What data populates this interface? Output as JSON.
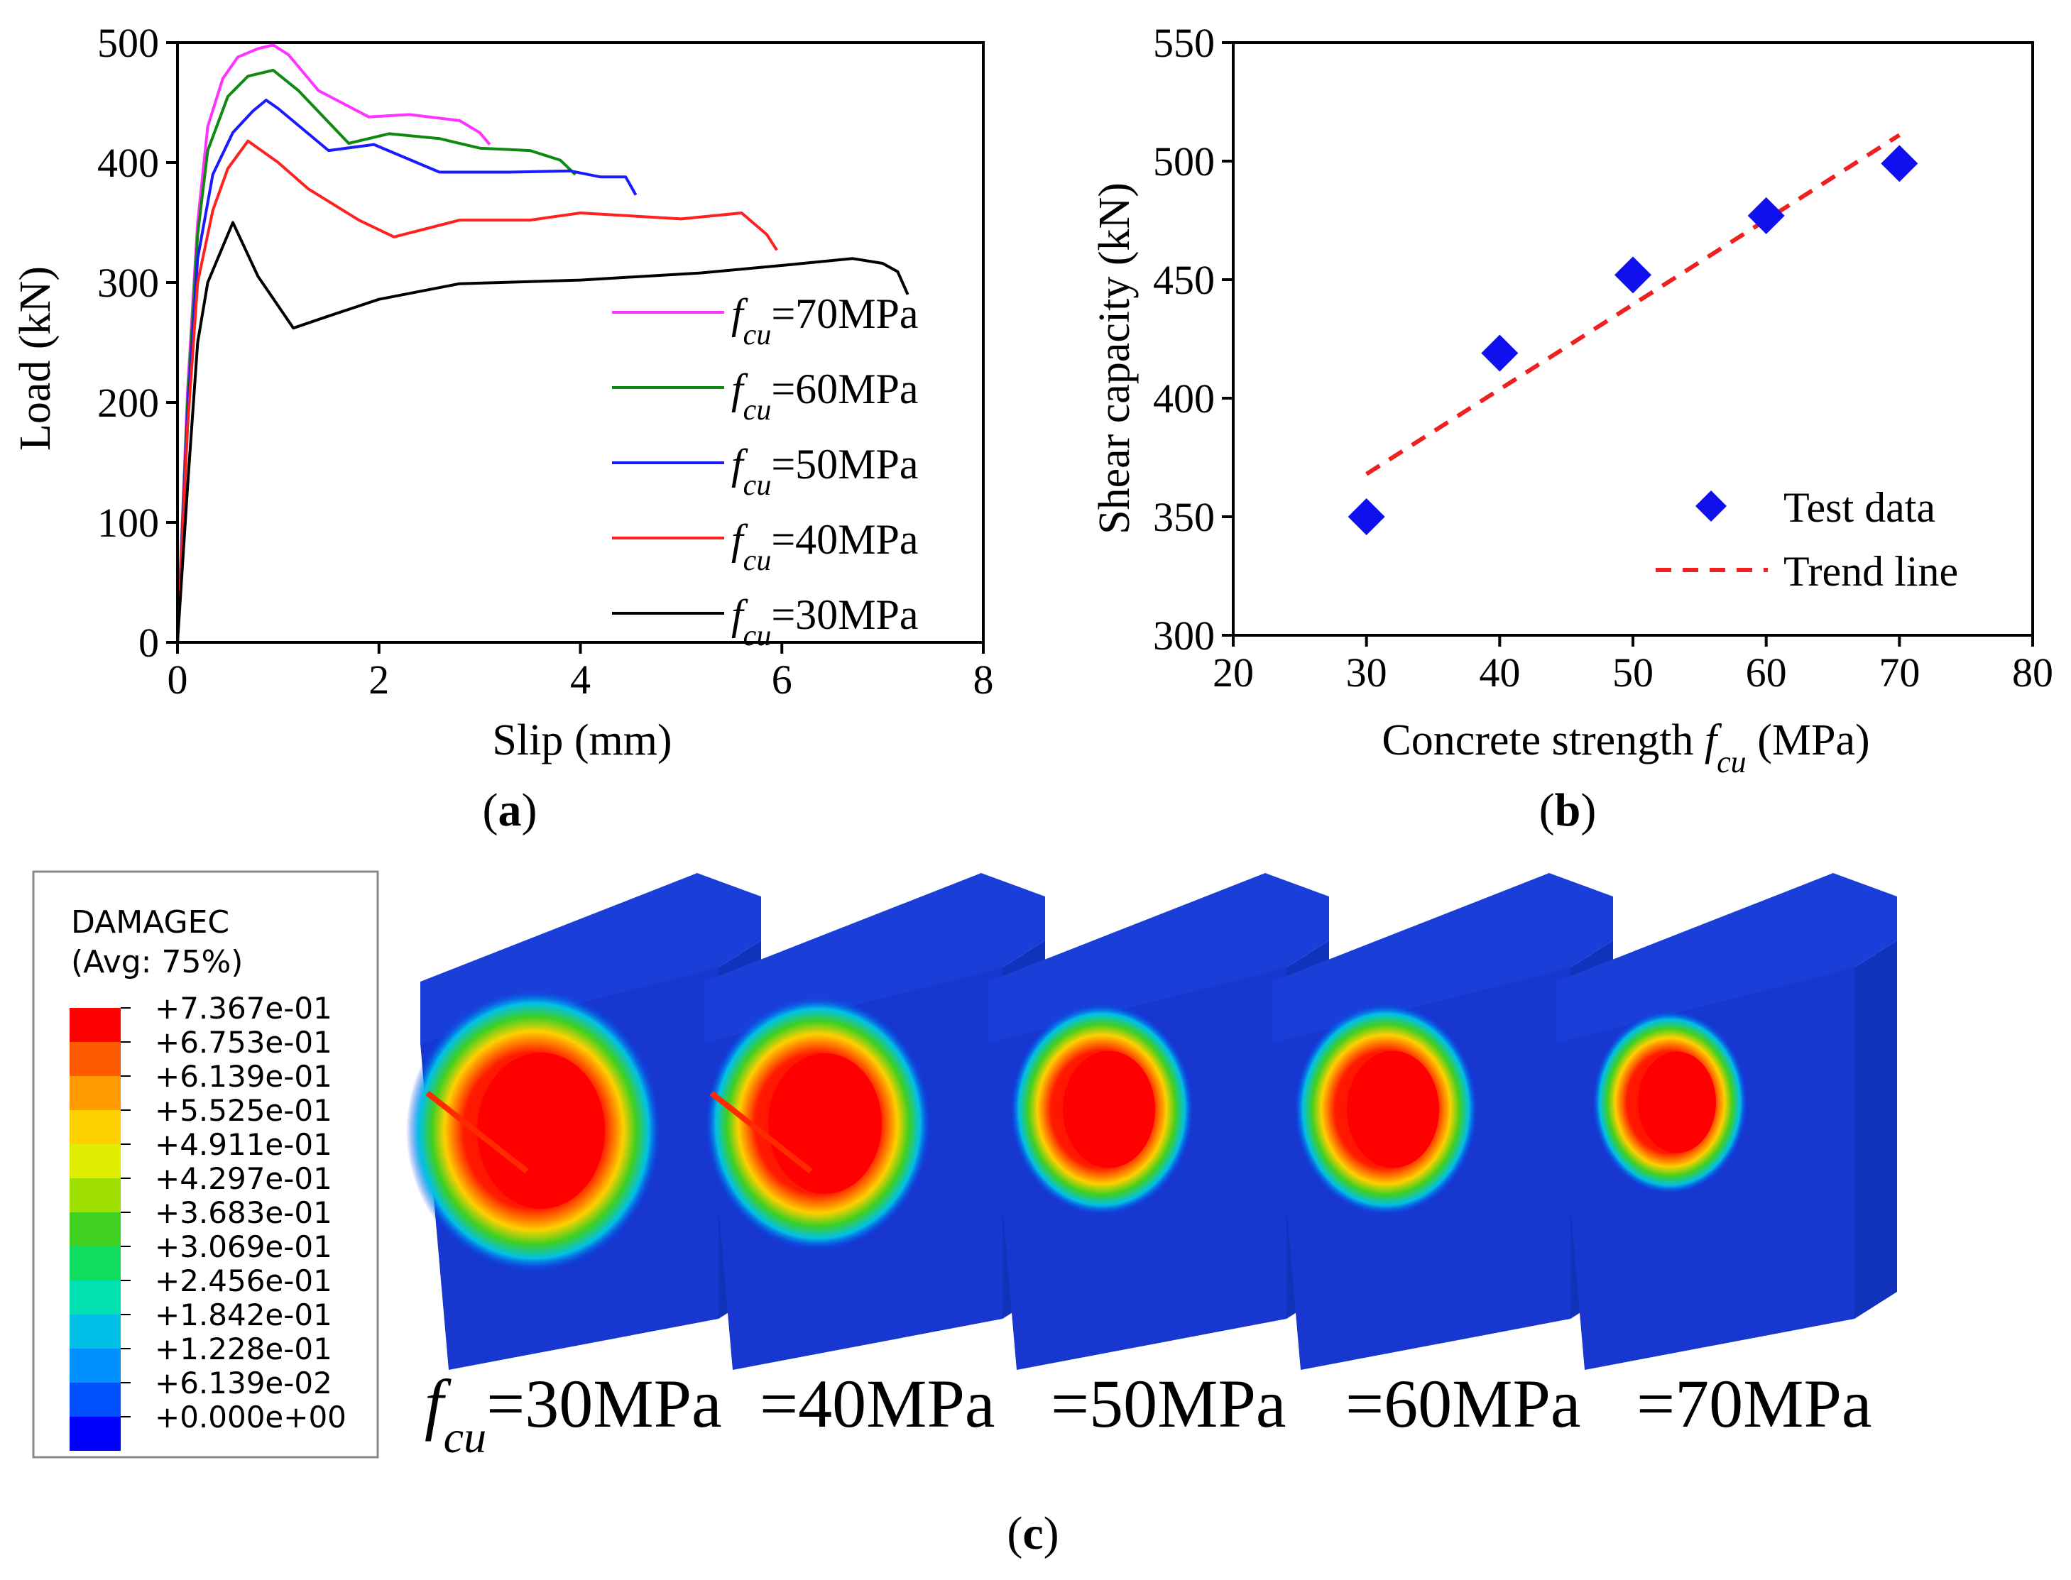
{
  "chart_data": [
    {
      "type": "line",
      "panel": "a",
      "caption": "a",
      "xlabel": "Slip (mm)",
      "ylabel": "Load (kN)",
      "xlim": [
        0,
        8
      ],
      "ylim": [
        0,
        500
      ],
      "xticks": [
        0,
        2,
        4,
        6,
        8
      ],
      "yticks": [
        0,
        100,
        200,
        300,
        400,
        500
      ],
      "legend_position": "bottom-right",
      "series": [
        {
          "name_symbol": "f",
          "name_sub": "cu",
          "name_value": "=70MPa",
          "color": "#ff33ff",
          "x": [
            0,
            0.1,
            0.2,
            0.3,
            0.45,
            0.6,
            0.8,
            0.95,
            1.1,
            1.4,
            1.9,
            2.3,
            2.8,
            3.0,
            3.1
          ],
          "y": [
            0,
            210,
            350,
            430,
            470,
            488,
            495,
            498,
            490,
            460,
            438,
            440,
            435,
            425,
            415
          ]
        },
        {
          "name_symbol": "f",
          "name_sub": "cu",
          "name_value": "=60MPa",
          "color": "#118811",
          "x": [
            0,
            0.1,
            0.2,
            0.3,
            0.5,
            0.7,
            0.95,
            1.2,
            1.7,
            2.1,
            2.6,
            3.0,
            3.5,
            3.8,
            3.95
          ],
          "y": [
            0,
            200,
            340,
            410,
            455,
            472,
            477,
            460,
            416,
            424,
            420,
            412,
            410,
            402,
            390
          ]
        },
        {
          "name_symbol": "f",
          "name_sub": "cu",
          "name_value": "=50MPa",
          "color": "#1a1aff",
          "x": [
            0,
            0.1,
            0.2,
            0.35,
            0.55,
            0.75,
            0.88,
            1.0,
            1.5,
            1.95,
            2.6,
            3.3,
            3.9,
            4.2,
            4.45,
            4.55
          ],
          "y": [
            0,
            190,
            320,
            390,
            425,
            443,
            452,
            445,
            410,
            415,
            392,
            392,
            393,
            388,
            388,
            373
          ]
        },
        {
          "name_symbol": "f",
          "name_sub": "cu",
          "name_value": "=40MPa",
          "color": "#ff2020",
          "x": [
            0,
            0.1,
            0.2,
            0.35,
            0.5,
            0.7,
            1.0,
            1.3,
            1.8,
            2.15,
            2.8,
            3.5,
            4.0,
            5.0,
            5.6,
            5.85,
            5.95
          ],
          "y": [
            0,
            180,
            300,
            360,
            395,
            418,
            400,
            378,
            352,
            338,
            352,
            352,
            358,
            353,
            358,
            340,
            327
          ]
        },
        {
          "name_symbol": "f",
          "name_sub": "cu",
          "name_value": "=30MPa",
          "color": "#000000",
          "x": [
            0,
            0.1,
            0.2,
            0.3,
            0.45,
            0.55,
            0.8,
            1.15,
            1.5,
            2.0,
            2.8,
            4.0,
            5.2,
            6.1,
            6.7,
            7.0,
            7.15,
            7.25
          ],
          "y": [
            0,
            130,
            250,
            300,
            330,
            350,
            305,
            262,
            272,
            286,
            299,
            302,
            308,
            315,
            320,
            316,
            309,
            290
          ]
        }
      ]
    },
    {
      "type": "scatter",
      "panel": "b",
      "caption": "b",
      "xlabel_main": "Concrete strength ",
      "xlabel_symbol": "f",
      "xlabel_sub": "cu",
      "xlabel_unit": " (MPa)",
      "ylabel": "Shear capacity (kN)",
      "xlim": [
        20,
        80
      ],
      "ylim": [
        300,
        550
      ],
      "xticks": [
        20,
        30,
        40,
        50,
        60,
        70,
        80
      ],
      "yticks": [
        300,
        350,
        400,
        450,
        500,
        550
      ],
      "legend_position": "bottom-right",
      "series": [
        {
          "name": "Test data",
          "marker": "diamond",
          "color": "#1010ee",
          "x": [
            30,
            40,
            50,
            60,
            70
          ],
          "y": [
            350,
            419,
            452,
            477,
            499
          ]
        },
        {
          "name": "Trend line",
          "style": "dashed",
          "color": "#ee2020",
          "x": [
            30,
            70
          ],
          "y": [
            368,
            511
          ]
        }
      ]
    }
  ],
  "contour": {
    "caption": "c",
    "title": "DAMAGEC",
    "subtitle": "(Avg: 75%)",
    "legend_labels": [
      "+7.367e-01",
      "+6.753e-01",
      "+6.139e-01",
      "+5.525e-01",
      "+4.911e-01",
      "+4.297e-01",
      "+3.683e-01",
      "+3.069e-01",
      "+2.456e-01",
      "+1.842e-01",
      "+1.228e-01",
      "+6.139e-02",
      "+0.000e+00"
    ],
    "legend_colors": [
      "#ff0000",
      "#ff5a00",
      "#ff9a00",
      "#ffd000",
      "#dfee00",
      "#9fe000",
      "#40d020",
      "#10dc60",
      "#00e0b0",
      "#00c0e8",
      "#0090ff",
      "#0050ff",
      "#0000ff"
    ],
    "specimens": [
      {
        "symbol": "f",
        "sub": "cu",
        "value": "=30MPa"
      },
      {
        "value": "=40MPa"
      },
      {
        "value": "=50MPa"
      },
      {
        "value": "=60MPa"
      },
      {
        "value": "=70MPa"
      }
    ]
  }
}
